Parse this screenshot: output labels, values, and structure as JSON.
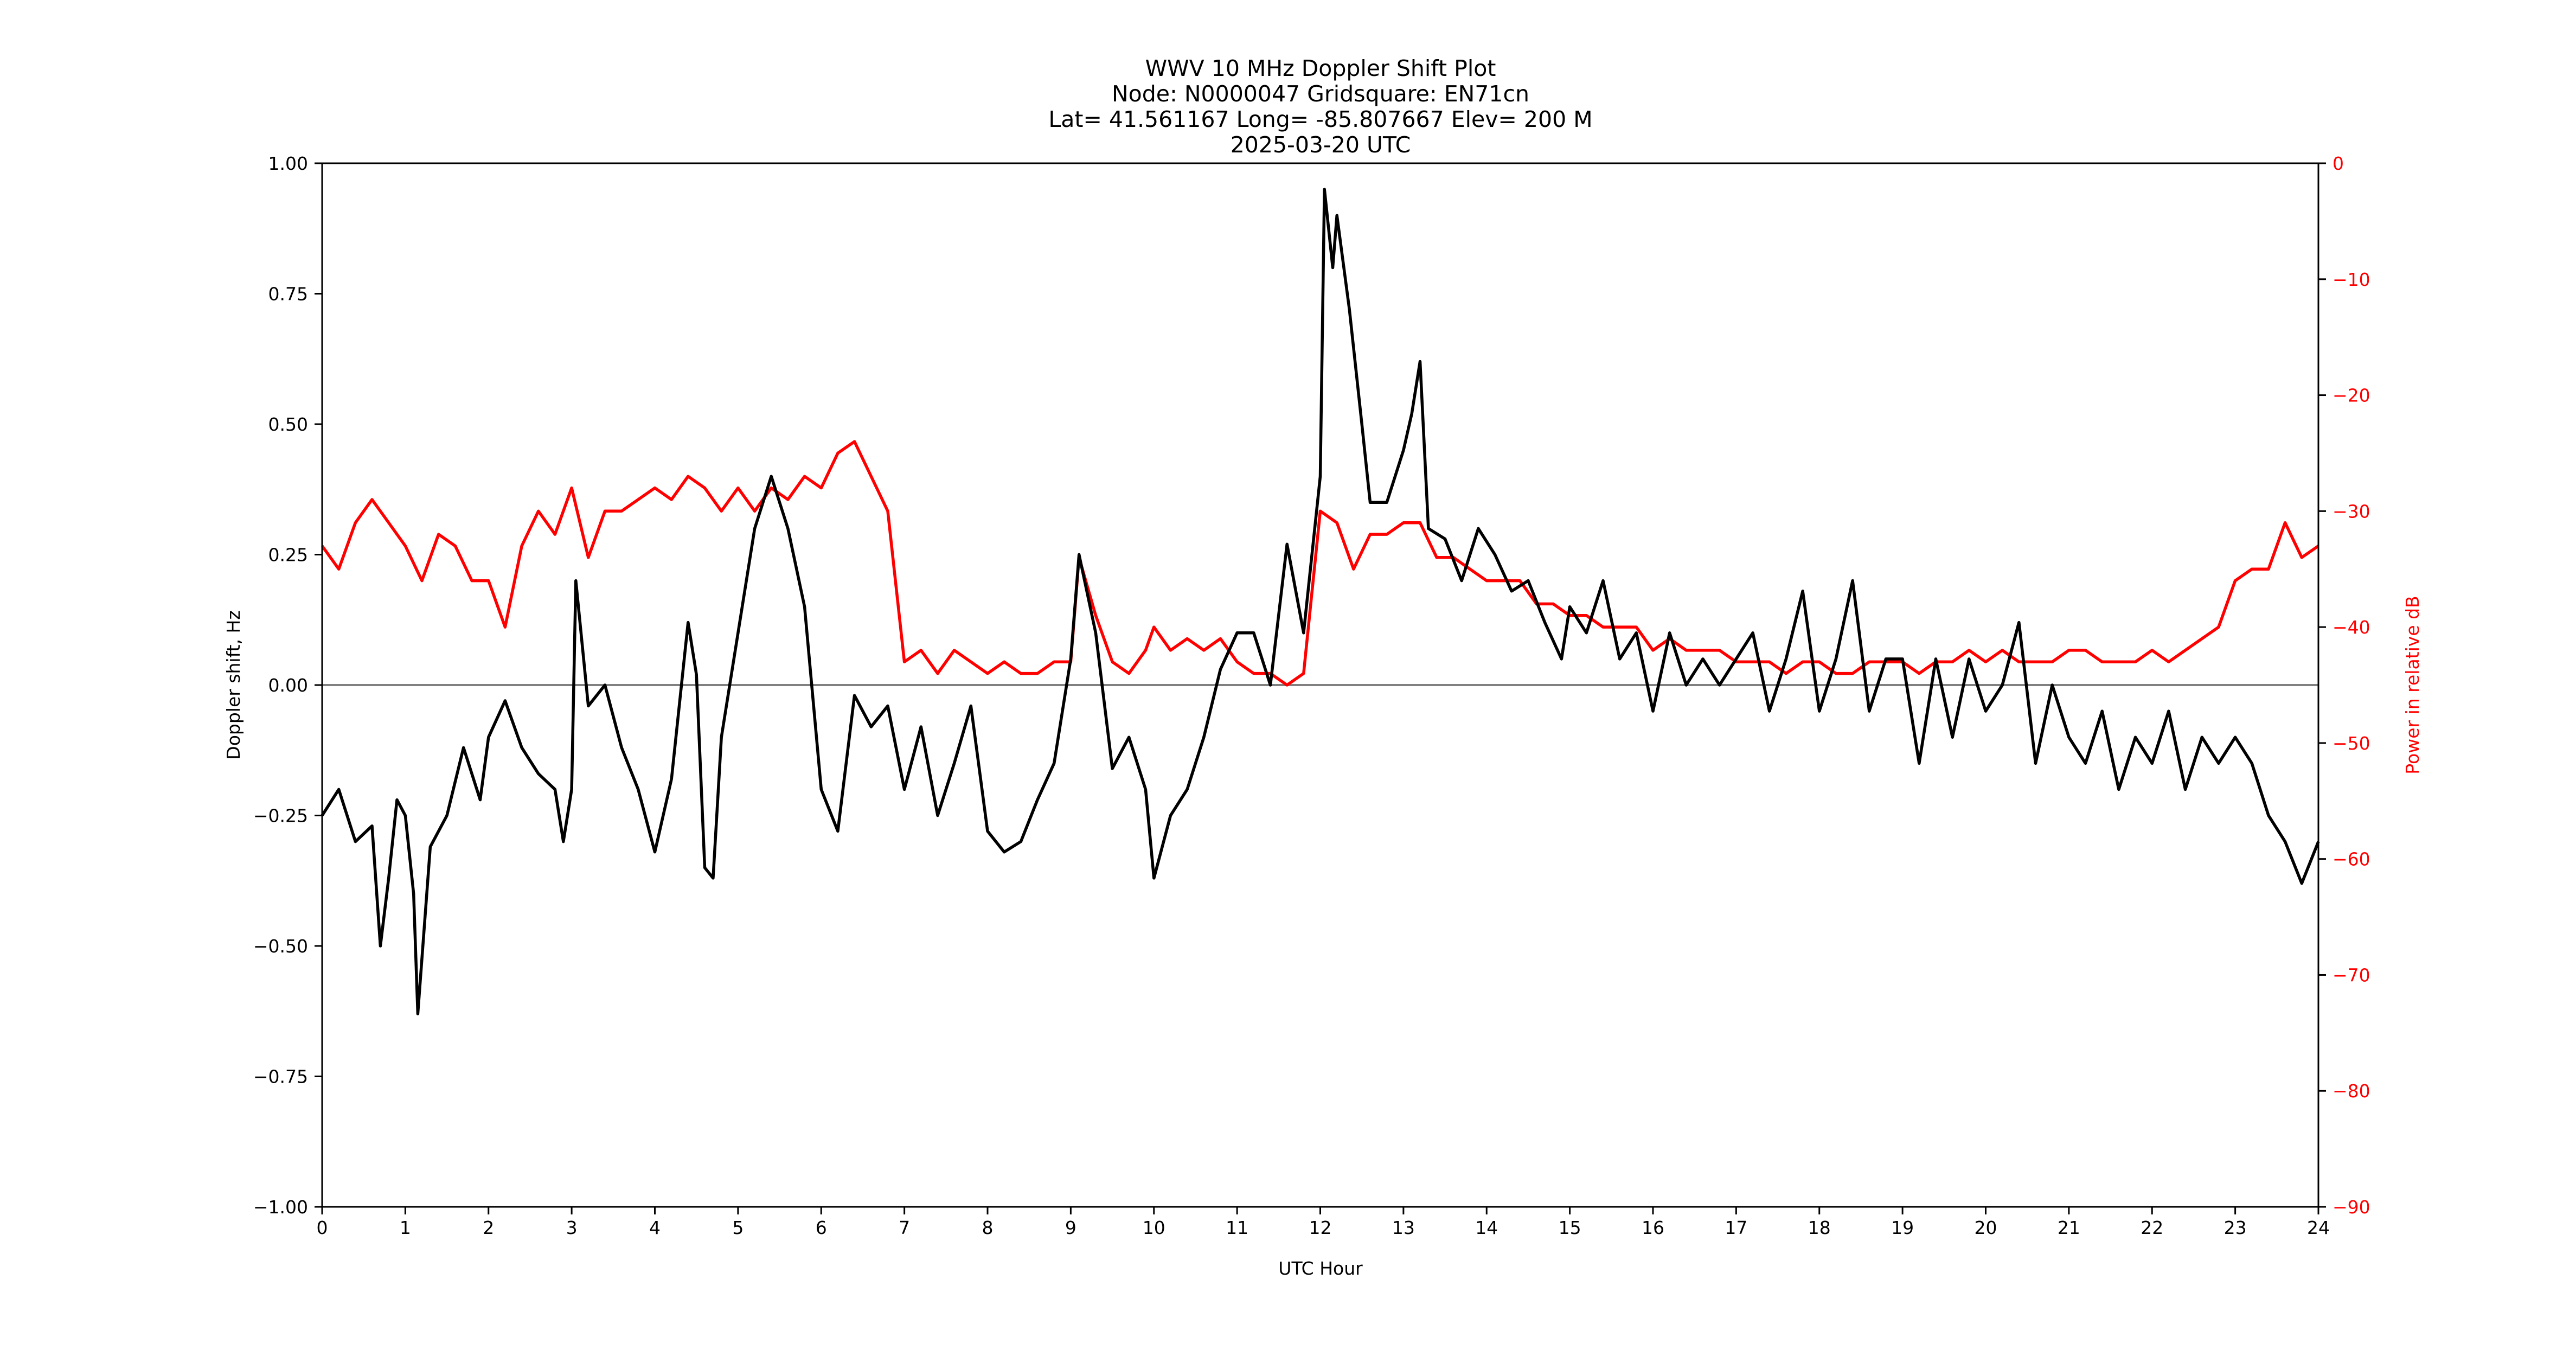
{
  "figure": {
    "title_lines": [
      "WWV 10 MHz Doppler Shift Plot",
      "Node:  N0000047     Gridsquare:  EN71cn",
      "Lat= 41.561167    Long= -85.807667    Elev= 200 M",
      "2025-03-20  UTC"
    ],
    "xlabel": "UTC Hour",
    "ylabel_left": "Doppler shift, Hz",
    "ylabel_right": "Power in relative dB",
    "colors": {
      "doppler": "#000000",
      "power": "#ff0000",
      "zero_line": "#808080",
      "right_axis": "#ff0000"
    }
  },
  "chart_data": {
    "type": "line",
    "title": "WWV 10 MHz Doppler Shift Plot",
    "subtitle": "Node:  N0000047     Gridsquare:  EN71cn / Lat= 41.561167    Long= -85.807667    Elev= 200 M / 2025-03-20  UTC",
    "xlabel": "UTC Hour",
    "ylabel": "Doppler shift, Hz",
    "ylabel_right": "Power in relative dB",
    "xlim": [
      0,
      24
    ],
    "ylim": [
      -1.0,
      1.0
    ],
    "ylim_right": [
      -90,
      0
    ],
    "x_ticks": [
      "0",
      "1",
      "2",
      "3",
      "4",
      "5",
      "6",
      "7",
      "8",
      "9",
      "10",
      "11",
      "12",
      "13",
      "14",
      "15",
      "16",
      "17",
      "18",
      "19",
      "20",
      "21",
      "22",
      "23",
      "24"
    ],
    "y_ticks_left": [
      "1.00",
      "0.75",
      "0.50",
      "0.25",
      "0.00",
      "−0.25",
      "−0.50",
      "−0.75",
      "−1.00"
    ],
    "y_ticks_right": [
      "0",
      "−10",
      "−20",
      "−30",
      "−40",
      "−50",
      "−60",
      "−70",
      "−80",
      "−90"
    ],
    "grid": false,
    "legend": "none",
    "series": [
      {
        "name": "Doppler shift (Hz)",
        "axis": "left",
        "color": "#000000",
        "x": [
          0,
          0.2,
          0.4,
          0.6,
          0.7,
          0.8,
          0.9,
          1.0,
          1.1,
          1.15,
          1.3,
          1.5,
          1.7,
          1.9,
          2.0,
          2.2,
          2.4,
          2.6,
          2.8,
          2.9,
          3.0,
          3.05,
          3.2,
          3.4,
          3.6,
          3.8,
          4.0,
          4.2,
          4.4,
          4.5,
          4.6,
          4.7,
          4.8,
          5.0,
          5.2,
          5.4,
          5.6,
          5.8,
          6.0,
          6.2,
          6.4,
          6.6,
          6.8,
          7.0,
          7.2,
          7.4,
          7.6,
          7.8,
          8.0,
          8.2,
          8.4,
          8.6,
          8.8,
          9.0,
          9.1,
          9.3,
          9.5,
          9.7,
          9.9,
          10.0,
          10.2,
          10.4,
          10.6,
          10.8,
          11.0,
          11.2,
          11.4,
          11.6,
          11.8,
          12.0,
          12.05,
          12.15,
          12.2,
          12.35,
          12.5,
          12.6,
          12.8,
          13.0,
          13.1,
          13.2,
          13.3,
          13.5,
          13.7,
          13.9,
          14.1,
          14.3,
          14.5,
          14.7,
          14.9,
          15.0,
          15.2,
          15.4,
          15.6,
          15.8,
          16.0,
          16.2,
          16.4,
          16.6,
          16.8,
          17.0,
          17.2,
          17.4,
          17.6,
          17.8,
          18.0,
          18.2,
          18.4,
          18.6,
          18.8,
          19.0,
          19.2,
          19.4,
          19.6,
          19.8,
          20.0,
          20.2,
          20.4,
          20.6,
          20.8,
          21.0,
          21.2,
          21.4,
          21.6,
          21.8,
          22.0,
          22.2,
          22.4,
          22.6,
          22.8,
          23.0,
          23.2,
          23.4,
          23.6,
          23.8,
          24.0
        ],
        "values": [
          -0.25,
          -0.2,
          -0.3,
          -0.27,
          -0.5,
          -0.37,
          -0.22,
          -0.25,
          -0.4,
          -0.63,
          -0.31,
          -0.25,
          -0.12,
          -0.22,
          -0.1,
          -0.03,
          -0.12,
          -0.17,
          -0.2,
          -0.3,
          -0.2,
          0.2,
          -0.04,
          0.0,
          -0.12,
          -0.2,
          -0.32,
          -0.18,
          0.12,
          0.02,
          -0.35,
          -0.37,
          -0.1,
          0.1,
          0.3,
          0.4,
          0.3,
          0.15,
          -0.2,
          -0.28,
          -0.02,
          -0.08,
          -0.04,
          -0.2,
          -0.08,
          -0.25,
          -0.15,
          -0.04,
          -0.28,
          -0.32,
          -0.3,
          -0.22,
          -0.15,
          0.05,
          0.25,
          0.1,
          -0.16,
          -0.1,
          -0.2,
          -0.37,
          -0.25,
          -0.2,
          -0.1,
          0.03,
          0.1,
          0.1,
          0.0,
          0.27,
          0.1,
          0.4,
          0.95,
          0.8,
          0.9,
          0.72,
          0.5,
          0.35,
          0.35,
          0.45,
          0.52,
          0.62,
          0.3,
          0.28,
          0.2,
          0.3,
          0.25,
          0.18,
          0.2,
          0.12,
          0.05,
          0.15,
          0.1,
          0.2,
          0.05,
          0.1,
          -0.05,
          0.1,
          0.0,
          0.05,
          0.0,
          0.05,
          0.1,
          -0.05,
          0.05,
          0.18,
          -0.05,
          0.05,
          0.2,
          -0.05,
          0.05,
          0.05,
          -0.15,
          0.05,
          -0.1,
          0.05,
          -0.05,
          0.0,
          0.12,
          -0.15,
          0.0,
          -0.1,
          -0.15,
          -0.05,
          -0.2,
          -0.1,
          -0.15,
          -0.05,
          -0.2,
          -0.1,
          -0.15,
          -0.1,
          -0.15,
          -0.25,
          -0.3,
          -0.38,
          -0.3
        ]
      },
      {
        "name": "Power (relative dB)",
        "axis": "right",
        "color": "#ff0000",
        "x": [
          0,
          0.2,
          0.4,
          0.6,
          0.8,
          1.0,
          1.2,
          1.4,
          1.6,
          1.8,
          2.0,
          2.2,
          2.4,
          2.6,
          2.8,
          3.0,
          3.2,
          3.4,
          3.6,
          3.8,
          4.0,
          4.2,
          4.4,
          4.6,
          4.8,
          5.0,
          5.2,
          5.4,
          5.6,
          5.8,
          6.0,
          6.2,
          6.4,
          6.6,
          6.8,
          7.0,
          7.2,
          7.4,
          7.6,
          7.8,
          8.0,
          8.2,
          8.4,
          8.6,
          8.8,
          9.0,
          9.1,
          9.3,
          9.5,
          9.7,
          9.9,
          10.0,
          10.2,
          10.4,
          10.6,
          10.8,
          11.0,
          11.2,
          11.4,
          11.6,
          11.8,
          12.0,
          12.2,
          12.4,
          12.6,
          12.8,
          13.0,
          13.2,
          13.4,
          13.6,
          13.8,
          14.0,
          14.2,
          14.4,
          14.6,
          14.8,
          15.0,
          15.2,
          15.4,
          15.6,
          15.8,
          16.0,
          16.2,
          16.4,
          16.6,
          16.8,
          17.0,
          17.2,
          17.4,
          17.6,
          17.8,
          18.0,
          18.2,
          18.4,
          18.6,
          18.8,
          19.0,
          19.2,
          19.4,
          19.6,
          19.8,
          20.0,
          20.2,
          20.4,
          20.6,
          20.8,
          21.0,
          21.2,
          21.4,
          21.6,
          21.8,
          22.0,
          22.2,
          22.4,
          22.6,
          22.8,
          23.0,
          23.2,
          23.4,
          23.6,
          23.8,
          24.0
        ],
        "values": [
          -33,
          -35,
          -31,
          -29,
          -31,
          -33,
          -36,
          -32,
          -33,
          -36,
          -36,
          -40,
          -33,
          -30,
          -32,
          -28,
          -34,
          -30,
          -30,
          -29,
          -28,
          -29,
          -27,
          -28,
          -30,
          -28,
          -30,
          -28,
          -29,
          -27,
          -28,
          -25,
          -24,
          -27,
          -30,
          -43,
          -42,
          -44,
          -42,
          -43,
          -44,
          -43,
          -44,
          -44,
          -43,
          -43,
          -34,
          -39,
          -43,
          -44,
          -42,
          -40,
          -42,
          -41,
          -42,
          -41,
          -43,
          -44,
          -44,
          -45,
          -44,
          -30,
          -31,
          -35,
          -32,
          -32,
          -31,
          -31,
          -34,
          -34,
          -35,
          -36,
          -36,
          -36,
          -38,
          -38,
          -39,
          -39,
          -40,
          -40,
          -40,
          -42,
          -41,
          -42,
          -42,
          -42,
          -43,
          -43,
          -43,
          -44,
          -43,
          -43,
          -44,
          -44,
          -43,
          -43,
          -43,
          -44,
          -43,
          -43,
          -42,
          -43,
          -42,
          -43,
          -43,
          -43,
          -42,
          -42,
          -43,
          -43,
          -43,
          -42,
          -43,
          -42,
          -41,
          -40,
          -36,
          -35,
          -35,
          -31,
          -34,
          -33
        ]
      }
    ],
    "reference_lines": [
      {
        "y": 0.0,
        "color": "#808080",
        "orientation": "horizontal"
      }
    ]
  }
}
